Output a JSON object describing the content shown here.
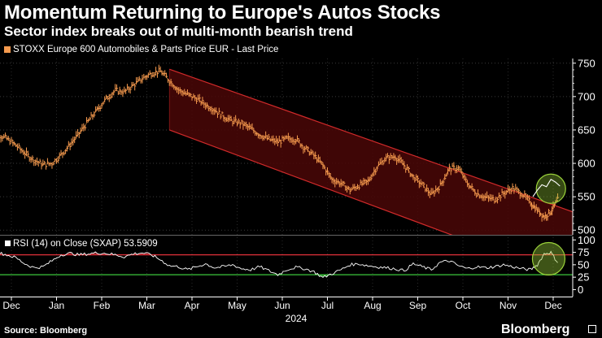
{
  "header": {
    "title": "Momentum Returning to Europe's Autos Stocks",
    "subtitle": "Sector index breaks out of multi-month bearish trend"
  },
  "legend": {
    "label": "STOXX Europe 600 Automobiles & Parts Price EUR - Last Price",
    "color": "#f59a4e"
  },
  "footer": {
    "source": "Source: Bloomberg",
    "brand": "Bloomberg"
  },
  "colors": {
    "price": "#f59a4e",
    "channel_fill": "#4a0707",
    "channel_line": "#d12a2a",
    "rsi": "#ffffff",
    "rsi_upper": "#e0303a",
    "rsi_lower": "#3cc83c",
    "highlight": "#9ad23a"
  },
  "chart_data": [
    {
      "type": "line",
      "name": "price",
      "title": "Momentum Returning to Europe's Autos Stocks",
      "subtitle": "Sector index breaks out of multi-month bearish trend",
      "series_name": "STOXX Europe 600 Automobiles & Parts Price EUR - Last Price",
      "x": [
        -0.5,
        -0.3,
        -0.1,
        0.1,
        0.3,
        0.5,
        0.7,
        0.9,
        1.1,
        1.3,
        1.5,
        1.7,
        1.9,
        2.1,
        2.3,
        2.5,
        2.7,
        2.9,
        3.1,
        3.3,
        3.5,
        3.7,
        3.9,
        4.1,
        4.3,
        4.5,
        4.7,
        4.9,
        5.1,
        5.3,
        5.5,
        5.7,
        5.9,
        6.1,
        6.3,
        6.5,
        6.7,
        6.9,
        7.1,
        7.3,
        7.5,
        7.7,
        7.9,
        8.1,
        8.3,
        8.5,
        8.7,
        8.9,
        9.1,
        9.3,
        9.5,
        9.7,
        9.9,
        10.1,
        10.3,
        10.5,
        10.7,
        10.9,
        11.1,
        11.3,
        11.5,
        11.65,
        11.8,
        11.95,
        12.1
      ],
      "y": [
        648,
        643,
        637,
        627,
        615,
        605,
        598,
        600,
        613,
        628,
        645,
        663,
        680,
        697,
        709,
        707,
        717,
        727,
        735,
        738,
        724,
        710,
        703,
        697,
        688,
        680,
        670,
        663,
        660,
        652,
        643,
        636,
        632,
        637,
        636,
        623,
        612,
        597,
        576,
        570,
        560,
        567,
        573,
        595,
        608,
        610,
        597,
        580,
        568,
        553,
        567,
        592,
        593,
        570,
        555,
        549,
        546,
        555,
        563,
        555,
        541,
        530,
        520,
        528,
        545
      ],
      "ylim": [
        493,
        757
      ],
      "yticks": [
        500,
        550,
        600,
        650,
        700,
        750
      ],
      "channel": {
        "start_x": 3.5,
        "end_x": 12.45,
        "upper_start": 741,
        "upper_end": 527,
        "lower_start": 650,
        "lower_end": 425
      },
      "annotation": "breakout circled",
      "breakout_x": [
        11.55,
        11.65,
        11.75,
        11.85,
        11.95,
        12.05,
        12.15
      ],
      "breakout_y": [
        550,
        560,
        568,
        565,
        576,
        572,
        566
      ]
    },
    {
      "type": "line",
      "name": "RSI",
      "label": "RSI (14)  on Close (SXAP) 53.5909",
      "x": [
        -0.5,
        -0.3,
        -0.1,
        0.1,
        0.3,
        0.5,
        0.7,
        0.9,
        1.1,
        1.3,
        1.5,
        1.7,
        1.9,
        2.1,
        2.3,
        2.5,
        2.7,
        2.9,
        3.1,
        3.3,
        3.5,
        3.7,
        3.9,
        4.1,
        4.3,
        4.5,
        4.7,
        4.9,
        5.1,
        5.3,
        5.5,
        5.7,
        5.9,
        6.1,
        6.3,
        6.5,
        6.7,
        6.9,
        7.1,
        7.3,
        7.5,
        7.7,
        7.9,
        8.1,
        8.3,
        8.5,
        8.7,
        8.9,
        9.1,
        9.3,
        9.5,
        9.7,
        9.9,
        10.1,
        10.3,
        10.5,
        10.7,
        10.9,
        11.1,
        11.3,
        11.5,
        11.65,
        11.8,
        11.95,
        12.1
      ],
      "y": [
        72,
        74,
        70,
        64,
        52,
        44,
        46,
        58,
        70,
        73,
        70,
        72,
        74,
        73,
        70,
        66,
        72,
        74,
        70,
        60,
        48,
        46,
        40,
        46,
        52,
        44,
        46,
        50,
        42,
        40,
        46,
        38,
        30,
        40,
        45,
        42,
        36,
        24,
        32,
        40,
        50,
        52,
        48,
        46,
        44,
        42,
        38,
        52,
        46,
        40,
        55,
        58,
        48,
        42,
        46,
        44,
        46,
        50,
        46,
        42,
        40,
        50,
        72,
        75,
        54
      ],
      "ylim": [
        -14,
        107
      ],
      "yticks": [
        0,
        25,
        50,
        75,
        100
      ],
      "overbought": 70,
      "oversold": 30,
      "last_value": 53.5909
    }
  ],
  "xaxis": {
    "months": [
      "Dec",
      "Jan",
      "Feb",
      "Mar",
      "Apr",
      "May",
      "Jun",
      "Jul",
      "Aug",
      "Sep",
      "Oct",
      "Nov",
      "Dec"
    ],
    "year": "2024"
  }
}
